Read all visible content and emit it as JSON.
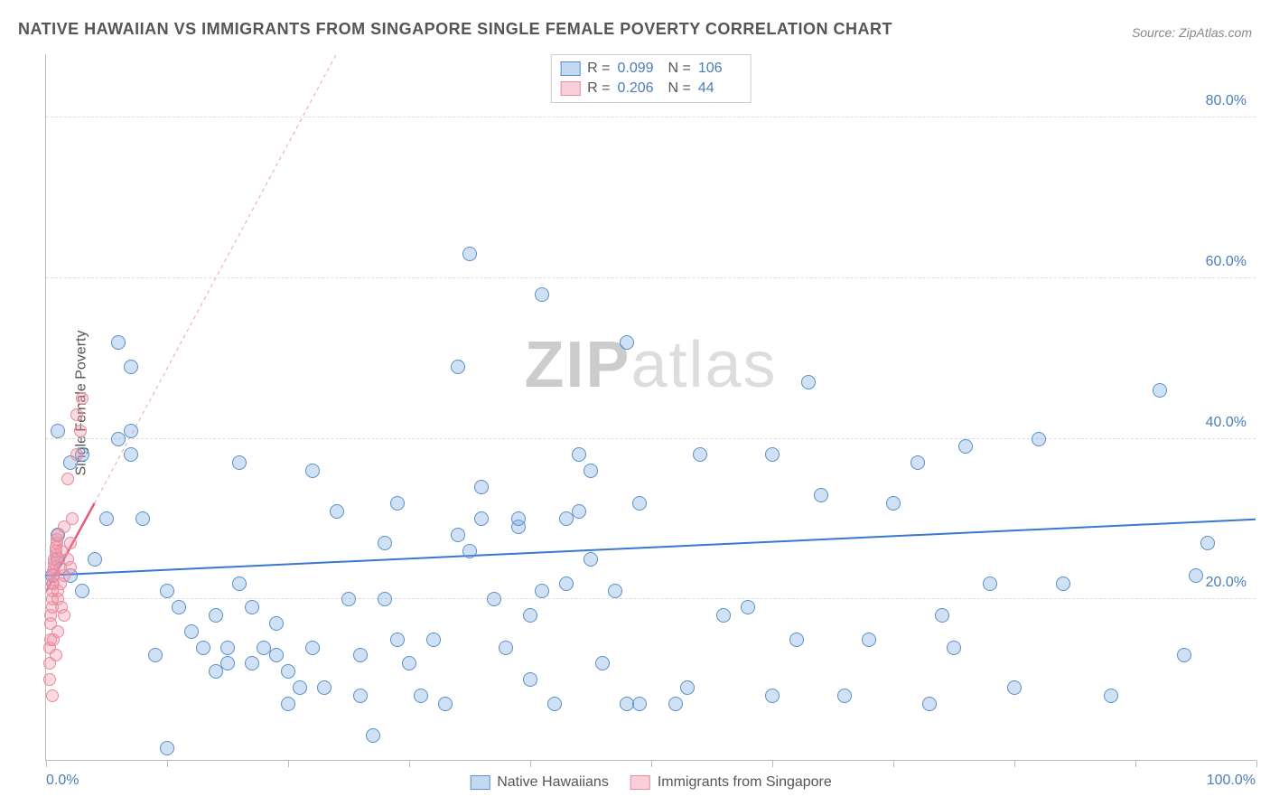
{
  "title": "NATIVE HAWAIIAN VS IMMIGRANTS FROM SINGAPORE SINGLE FEMALE POVERTY CORRELATION CHART",
  "source": "Source: ZipAtlas.com",
  "ylabel": "Single Female Poverty",
  "watermark": {
    "bold": "ZIP",
    "rest": "atlas"
  },
  "chart": {
    "type": "scatter",
    "background_color": "#ffffff",
    "grid_color": "#dddddd",
    "axis_color": "#bbbbbb",
    "label_color": "#555555",
    "tick_color": "#4a7ebb",
    "label_fontsize": 16,
    "title_fontsize": 18,
    "xlim": [
      0,
      100
    ],
    "ylim": [
      0,
      88
    ],
    "xtick_labels": {
      "min": "0.0%",
      "max": "100.0%"
    },
    "xticks": [
      0,
      10,
      20,
      30,
      40,
      50,
      60,
      70,
      80,
      90,
      100
    ],
    "yticks": [
      20,
      40,
      60,
      80
    ],
    "ytick_labels": [
      "20.0%",
      "40.0%",
      "60.0%",
      "80.0%"
    ],
    "marker_size_blue": 16,
    "marker_size_pink": 14,
    "series": [
      {
        "name": "Native Hawaiians",
        "color_fill": "rgba(120,170,225,0.35)",
        "color_stroke": "#5a8fc8",
        "stats": {
          "R": "0.099",
          "N": "106"
        },
        "trend": {
          "x1": 0,
          "y1": 23,
          "x2": 100,
          "y2": 30,
          "color": "#3a77d0",
          "width": 2,
          "dash": "none"
        },
        "points": [
          [
            0.5,
            23
          ],
          [
            1,
            25
          ],
          [
            1,
            28
          ],
          [
            1,
            41
          ],
          [
            2,
            37
          ],
          [
            2,
            23
          ],
          [
            3,
            21
          ],
          [
            3,
            38
          ],
          [
            4,
            25
          ],
          [
            5,
            30
          ],
          [
            6,
            52
          ],
          [
            6,
            40
          ],
          [
            7,
            49
          ],
          [
            7,
            38
          ],
          [
            7,
            41
          ],
          [
            8,
            30
          ],
          [
            9,
            13
          ],
          [
            10,
            21
          ],
          [
            10,
            1.5
          ],
          [
            11,
            19
          ],
          [
            12,
            16
          ],
          [
            13,
            14
          ],
          [
            14,
            11
          ],
          [
            14,
            18
          ],
          [
            15,
            14
          ],
          [
            15,
            12
          ],
          [
            16,
            37
          ],
          [
            16,
            22
          ],
          [
            17,
            19
          ],
          [
            17,
            12
          ],
          [
            18,
            14
          ],
          [
            19,
            13
          ],
          [
            19,
            17
          ],
          [
            20,
            7
          ],
          [
            20,
            11
          ],
          [
            21,
            9
          ],
          [
            22,
            36
          ],
          [
            22,
            14
          ],
          [
            23,
            9
          ],
          [
            24,
            31
          ],
          [
            25,
            20
          ],
          [
            26,
            13
          ],
          [
            26,
            8
          ],
          [
            27,
            3
          ],
          [
            28,
            27
          ],
          [
            28,
            20
          ],
          [
            29,
            15
          ],
          [
            29,
            32
          ],
          [
            30,
            12
          ],
          [
            31,
            8
          ],
          [
            32,
            15
          ],
          [
            33,
            7
          ],
          [
            34,
            49
          ],
          [
            34,
            28
          ],
          [
            35,
            26
          ],
          [
            35,
            63
          ],
          [
            36,
            34
          ],
          [
            36,
            30
          ],
          [
            37,
            20
          ],
          [
            38,
            14
          ],
          [
            39,
            29
          ],
          [
            39,
            30
          ],
          [
            40,
            18
          ],
          [
            40,
            10
          ],
          [
            41,
            21
          ],
          [
            41,
            58
          ],
          [
            42,
            7
          ],
          [
            43,
            22
          ],
          [
            43,
            30
          ],
          [
            44,
            31
          ],
          [
            44,
            38
          ],
          [
            45,
            25
          ],
          [
            45,
            36
          ],
          [
            46,
            12
          ],
          [
            47,
            21
          ],
          [
            48,
            52
          ],
          [
            48,
            7
          ],
          [
            49,
            7
          ],
          [
            49,
            32
          ],
          [
            52,
            7
          ],
          [
            53,
            9
          ],
          [
            54,
            38
          ],
          [
            56,
            18
          ],
          [
            58,
            19
          ],
          [
            60,
            8
          ],
          [
            60,
            38
          ],
          [
            62,
            15
          ],
          [
            63,
            47
          ],
          [
            64,
            33
          ],
          [
            66,
            8
          ],
          [
            68,
            15
          ],
          [
            70,
            32
          ],
          [
            72,
            37
          ],
          [
            73,
            7
          ],
          [
            74,
            18
          ],
          [
            75,
            14
          ],
          [
            76,
            39
          ],
          [
            78,
            22
          ],
          [
            80,
            9
          ],
          [
            82,
            40
          ],
          [
            84,
            22
          ],
          [
            88,
            8
          ],
          [
            92,
            46
          ],
          [
            94,
            13
          ],
          [
            95,
            23
          ],
          [
            96,
            27
          ]
        ]
      },
      {
        "name": "Immigrants from Singapore",
        "color_fill": "rgba(240,150,170,0.35)",
        "color_stroke": "#e88aa0",
        "stats": {
          "R": "0.206",
          "N": "44"
        },
        "trend_solid": {
          "x1": 0,
          "y1": 21,
          "x2": 4,
          "y2": 32,
          "color": "#e85a7a",
          "width": 2.5
        },
        "trend_dashed": {
          "x1": 4,
          "y1": 32,
          "x2": 24,
          "y2": 88,
          "color": "#f0a0b5",
          "width": 1,
          "dash": "4,4"
        },
        "points": [
          [
            0.3,
            10
          ],
          [
            0.3,
            12
          ],
          [
            0.3,
            14
          ],
          [
            0.4,
            15
          ],
          [
            0.4,
            17
          ],
          [
            0.4,
            18
          ],
          [
            0.5,
            19
          ],
          [
            0.5,
            20
          ],
          [
            0.5,
            21
          ],
          [
            0.5,
            22
          ],
          [
            0.6,
            22
          ],
          [
            0.6,
            23
          ],
          [
            0.6,
            23.5
          ],
          [
            0.7,
            24
          ],
          [
            0.7,
            24.5
          ],
          [
            0.7,
            25
          ],
          [
            0.8,
            25.5
          ],
          [
            0.8,
            26
          ],
          [
            0.8,
            26.5
          ],
          [
            0.9,
            27
          ],
          [
            0.9,
            27.5
          ],
          [
            1,
            28
          ],
          [
            1,
            20
          ],
          [
            1,
            21
          ],
          [
            1.2,
            22
          ],
          [
            1.2,
            24
          ],
          [
            1.3,
            19
          ],
          [
            1.3,
            26
          ],
          [
            1.5,
            18
          ],
          [
            1.5,
            23
          ],
          [
            1.5,
            29
          ],
          [
            1.8,
            25
          ],
          [
            1.8,
            35
          ],
          [
            2,
            24
          ],
          [
            2,
            27
          ],
          [
            2.2,
            30
          ],
          [
            2.5,
            38
          ],
          [
            2.5,
            43
          ],
          [
            2.8,
            41
          ],
          [
            3,
            45
          ],
          [
            0.5,
            8
          ],
          [
            0.6,
            15
          ],
          [
            0.8,
            13
          ],
          [
            1,
            16
          ]
        ]
      }
    ]
  },
  "legend": {
    "item1": "Native Hawaiians",
    "item2": "Immigrants from Singapore"
  },
  "stats_labels": {
    "r": "R =",
    "n": "N ="
  }
}
